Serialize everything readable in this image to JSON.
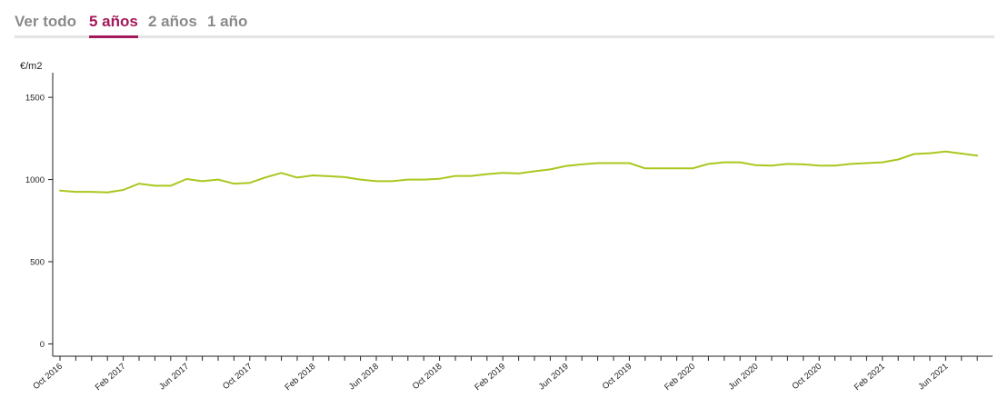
{
  "tabs": [
    {
      "label": "Ver todo",
      "active": false
    },
    {
      "label": "5 años",
      "active": true
    },
    {
      "label": "2 años",
      "active": false
    },
    {
      "label": "1 año",
      "active": false
    }
  ],
  "colors": {
    "line": "#a8c81e",
    "accent": "#a3195b",
    "tab_inactive": "#8a8a8a"
  },
  "chart_data": {
    "type": "line",
    "ylabel": "€/m2",
    "ylim": [
      -75,
      1650
    ],
    "yticks": [
      0,
      500,
      1000,
      1500
    ],
    "x_tick_labels": [
      "Oct 2016",
      "Feb 2017",
      "Jun 2017",
      "Oct 2017",
      "Feb 2018",
      "Jun 2018",
      "Oct 2018",
      "Feb 2019",
      "Jun 2019",
      "Oct 2019",
      "Feb 2020",
      "Jun 2020",
      "Oct 2020",
      "Feb 2021",
      "Jun 2021"
    ],
    "x_start": "Oct 2016",
    "x_end": "Aug 2021",
    "series": [
      {
        "x": [
          "Oct 2016",
          "Nov 2016",
          "Dec 2016",
          "Jan 2017",
          "Feb 2017",
          "Mar 2017",
          "Apr 2017",
          "May 2017",
          "Jun 2017",
          "Jul 2017",
          "Aug 2017",
          "Sep 2017",
          "Oct 2017",
          "Nov 2017",
          "Dec 2017",
          "Jan 2018",
          "Feb 2018",
          "Mar 2018",
          "Apr 2018",
          "May 2018",
          "Jun 2018",
          "Jul 2018",
          "Aug 2018",
          "Sep 2018",
          "Oct 2018",
          "Nov 2018",
          "Dec 2018",
          "Jan 2019",
          "Feb 2019",
          "Mar 2019",
          "Apr 2019",
          "May 2019",
          "Jun 2019",
          "Jul 2019",
          "Aug 2019",
          "Sep 2019",
          "Oct 2019",
          "Nov 2019",
          "Dec 2019",
          "Jan 2020",
          "Feb 2020",
          "Mar 2020",
          "Apr 2020",
          "May 2020",
          "Jun 2020",
          "Jul 2020",
          "Aug 2020",
          "Sep 2020",
          "Oct 2020",
          "Nov 2020",
          "Dec 2020",
          "Jan 2021",
          "Feb 2021",
          "Mar 2021",
          "Apr 2021",
          "May 2021",
          "Jun 2021",
          "Jul 2021",
          "Aug 2021"
        ],
        "values": [
          933,
          925,
          925,
          922,
          937,
          975,
          962,
          962,
          1003,
          990,
          1000,
          975,
          980,
          1013,
          1040,
          1012,
          1025,
          1020,
          1015,
          1000,
          990,
          990,
          1000,
          1000,
          1005,
          1022,
          1022,
          1033,
          1040,
          1037,
          1050,
          1062,
          1083,
          1092,
          1100,
          1100,
          1100,
          1068,
          1068,
          1068,
          1068,
          1095,
          1105,
          1105,
          1087,
          1085,
          1095,
          1092,
          1085,
          1085,
          1095,
          1100,
          1105,
          1122,
          1155,
          1160,
          1170,
          1158,
          1145
        ]
      }
    ]
  }
}
